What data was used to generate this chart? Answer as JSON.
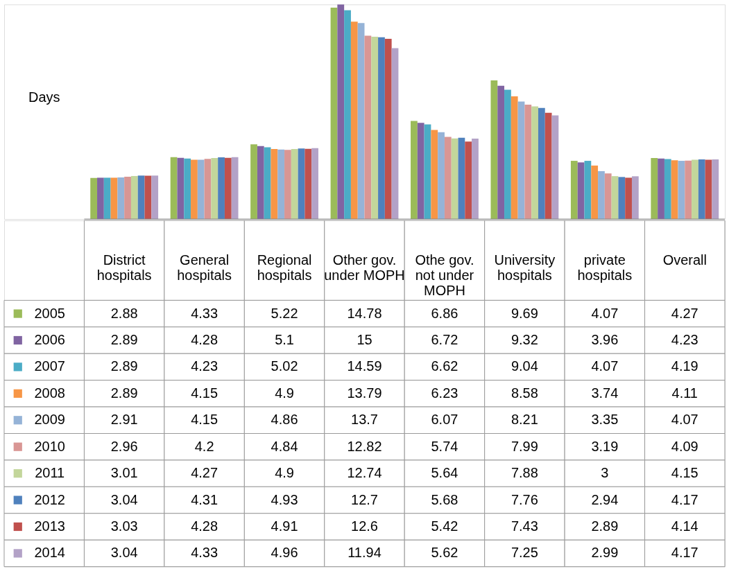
{
  "chart_data": {
    "type": "bar",
    "ylabel": "Days",
    "categories": [
      "District hospitals",
      "General hospitals",
      "Regional hospitals",
      "Other gov. under MOPH",
      "Othe gov. not under MOPH",
      "University hospitals",
      "private hospitals",
      "Overall"
    ],
    "series": [
      {
        "name": "2005",
        "color": "#9bbb59",
        "values": [
          2.88,
          4.33,
          5.22,
          14.78,
          6.86,
          9.69,
          4.07,
          4.27
        ]
      },
      {
        "name": "2006",
        "color": "#8064a2",
        "values": [
          2.89,
          4.28,
          5.1,
          15,
          6.72,
          9.32,
          3.96,
          4.23
        ]
      },
      {
        "name": "2007",
        "color": "#4bacc6",
        "values": [
          2.89,
          4.23,
          5.02,
          14.59,
          6.62,
          9.04,
          4.07,
          4.19
        ]
      },
      {
        "name": "2008",
        "color": "#f79646",
        "values": [
          2.89,
          4.15,
          4.9,
          13.79,
          6.23,
          8.58,
          3.74,
          4.11
        ]
      },
      {
        "name": "2009",
        "color": "#95b3d7",
        "values": [
          2.91,
          4.15,
          4.86,
          13.7,
          6.07,
          8.21,
          3.35,
          4.07
        ]
      },
      {
        "name": "2010",
        "color": "#d99694",
        "values": [
          2.96,
          4.2,
          4.84,
          12.82,
          5.74,
          7.99,
          3.19,
          4.09
        ]
      },
      {
        "name": "2011",
        "color": "#c3d69b",
        "values": [
          3.01,
          4.27,
          4.9,
          12.74,
          5.64,
          7.88,
          3,
          4.15
        ]
      },
      {
        "name": "2012",
        "color": "#4f81bd",
        "values": [
          3.04,
          4.31,
          4.93,
          12.7,
          5.68,
          7.76,
          2.94,
          4.17
        ]
      },
      {
        "name": "2013",
        "color": "#c0504d",
        "values": [
          3.03,
          4.28,
          4.91,
          12.6,
          5.42,
          7.43,
          2.89,
          4.14
        ]
      },
      {
        "name": "2014",
        "color": "#b3a2c7",
        "values": [
          3.04,
          4.33,
          4.96,
          11.94,
          5.62,
          7.25,
          2.99,
          4.17
        ]
      }
    ],
    "data_labels": true,
    "legend": "bottom",
    "grid": false
  }
}
